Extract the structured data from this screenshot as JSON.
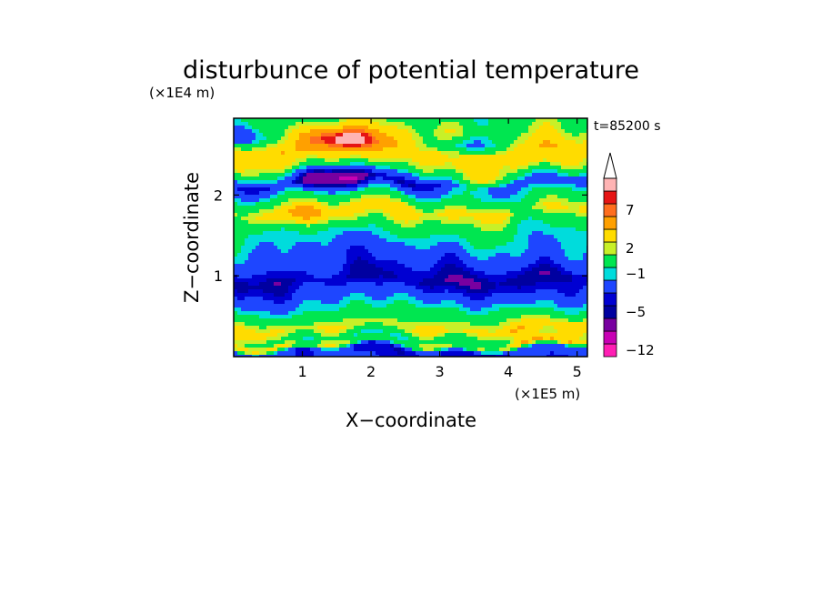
{
  "chart_data": {
    "type": "heatmap",
    "title": "disturbunce of potential temperature",
    "xlabel": "X−coordinate",
    "ylabel": "Z−coordinate",
    "x_unit": "(×1E5 m)",
    "y_unit": "(×1E4 m)",
    "time_label": "t=85200 s",
    "xlim": [
      0,
      5.15
    ],
    "ylim": [
      0,
      2.95
    ],
    "x_ticks": [
      {
        "value": 1,
        "label": "1"
      },
      {
        "value": 2,
        "label": "2"
      },
      {
        "value": 3,
        "label": "3"
      },
      {
        "value": 4,
        "label": "4"
      },
      {
        "value": 5,
        "label": "5"
      }
    ],
    "y_ticks": [
      {
        "value": 1,
        "label": "1"
      },
      {
        "value": 2,
        "label": "2"
      }
    ],
    "colorbar": {
      "levels": [
        {
          "color": "#ff1eb4",
          "label": "−12"
        },
        {
          "color": "#c800b4",
          "label": ""
        },
        {
          "color": "#7800a0",
          "label": ""
        },
        {
          "color": "#0000a0",
          "label": "−5"
        },
        {
          "color": "#0000d2",
          "label": ""
        },
        {
          "color": "#1e46ff",
          "label": ""
        },
        {
          "color": "#00dcdc",
          "label": "−1"
        },
        {
          "color": "#00e650",
          "label": ""
        },
        {
          "color": "#c8f028",
          "label": "2"
        },
        {
          "color": "#ffdc00",
          "label": ""
        },
        {
          "color": "#ffa000",
          "label": ""
        },
        {
          "color": "#ff6e1e",
          "label": "7"
        },
        {
          "color": "#e61414",
          "label": ""
        },
        {
          "color": "#ffb4b4",
          "label": ""
        }
      ],
      "extend_max": true,
      "extend_color": "#ffffff"
    },
    "layers": [
      {
        "z": 0.08,
        "theta": -3.0
      },
      {
        "z": 0.15,
        "theta": 3.0
      },
      {
        "z": 0.22,
        "theta": 0.5
      },
      {
        "z": 0.35,
        "theta": 3.5
      },
      {
        "z": 0.5,
        "theta": 1.0
      },
      {
        "z": 0.7,
        "theta": -1.5
      },
      {
        "z": 0.95,
        "theta": -4.5
      },
      {
        "z": 1.15,
        "theta": -2.5
      },
      {
        "z": 1.4,
        "theta": -1.0
      },
      {
        "z": 1.6,
        "theta": 0.5
      },
      {
        "z": 1.8,
        "theta": 3.5
      },
      {
        "z": 2.0,
        "theta": 0.0
      },
      {
        "z": 2.15,
        "theta": -3.5
      },
      {
        "z": 2.35,
        "theta": 2.5
      },
      {
        "z": 2.55,
        "theta": 5.0
      },
      {
        "z": 2.75,
        "theta": 3.0
      },
      {
        "z": 2.95,
        "theta": 1.0
      }
    ],
    "features": [
      {
        "x": 1.5,
        "z": 2.7,
        "theta": 6.5
      },
      {
        "x": 3.4,
        "z": 2.6,
        "theta": -6.0
      },
      {
        "x": 1.4,
        "z": 2.25,
        "theta": -5.5
      },
      {
        "x": 3.6,
        "z": 2.15,
        "theta": 4.0
      },
      {
        "x": 1.0,
        "z": 1.75,
        "theta": 2.5
      },
      {
        "x": 4.7,
        "z": 0.25,
        "theta": 2.5
      },
      {
        "x": 0.15,
        "z": 2.7,
        "theta": -4.0
      }
    ]
  }
}
